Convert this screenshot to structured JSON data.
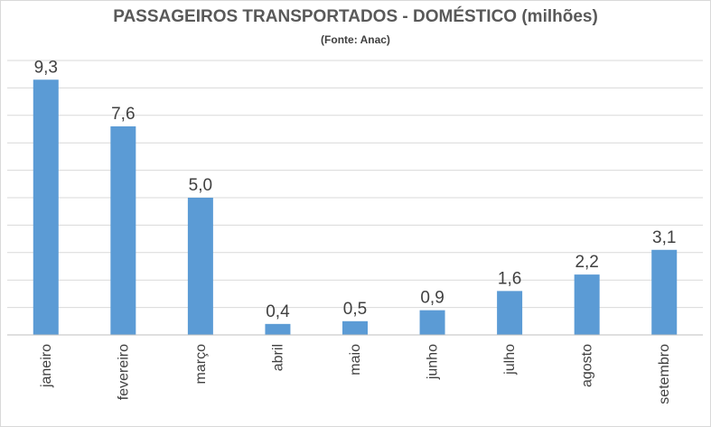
{
  "chart_data": {
    "type": "bar",
    "title": "PASSAGEIROS TRANSPORTADOS - DOMÉSTICO (milhões)",
    "subtitle": "(Fonte: Anac)",
    "categories": [
      "janeiro",
      "fevereiro",
      "março",
      "abril",
      "maio",
      "junho",
      "julho",
      "agosto",
      "setembro"
    ],
    "values": [
      9.3,
      7.6,
      5.0,
      0.4,
      0.5,
      0.9,
      1.6,
      2.2,
      3.1
    ],
    "value_labels": [
      "9,3",
      "7,6",
      "5,0",
      "0,4",
      "0,5",
      "0,9",
      "1,6",
      "2,2",
      "3,1"
    ],
    "ylim": [
      0,
      10
    ],
    "grid": true,
    "legend": "none",
    "bar_color": "#5b9bd5"
  }
}
